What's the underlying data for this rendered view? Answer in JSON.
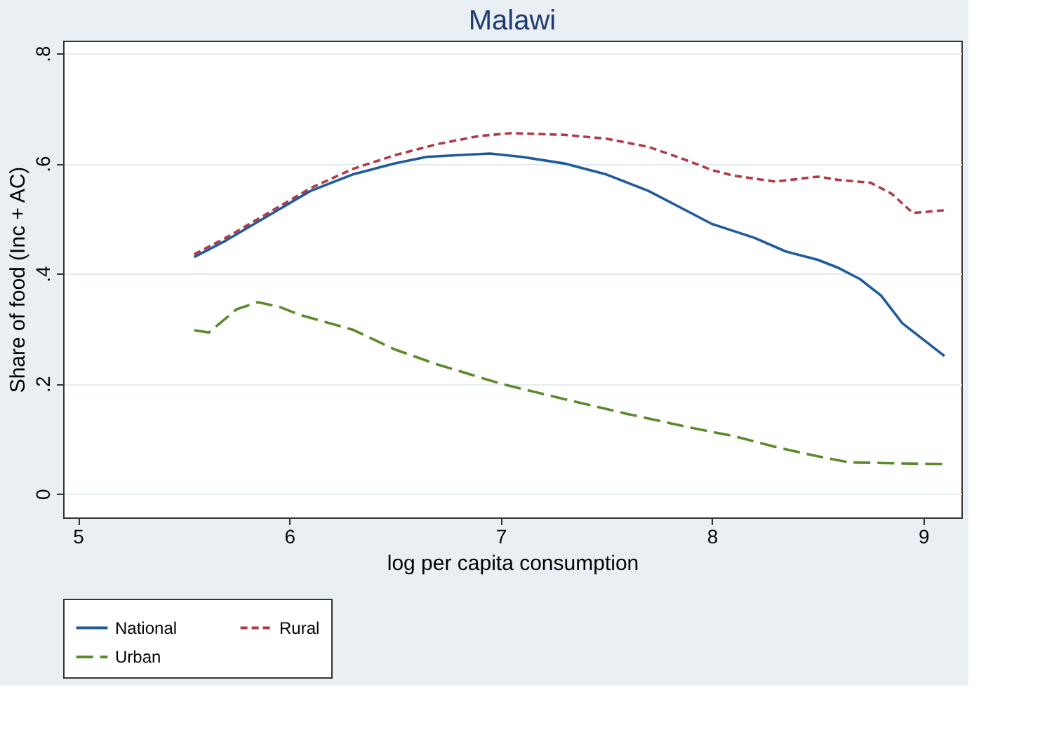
{
  "chart_data": {
    "type": "line",
    "title": "Malawi",
    "xlabel": "log per capita consumption",
    "ylabel": "Share of food (Inc + AC)",
    "xlim": [
      4.93,
      9.18
    ],
    "xticks": [
      5,
      6,
      7,
      8,
      9
    ],
    "ylim": [
      -0.043,
      0.823
    ],
    "yticks": [
      {
        "value": 0,
        "label": "0"
      },
      {
        "value": 0.2,
        "label": ".2"
      },
      {
        "value": 0.4,
        "label": ".4"
      },
      {
        "value": 0.6,
        "label": ".6"
      },
      {
        "value": 0.8,
        "label": ".8"
      }
    ],
    "grid": "y",
    "legend": "bottom",
    "series": [
      {
        "name": "National",
        "color": "#1f5b9c",
        "line_style": "solid",
        "x": [
          5.55,
          5.7,
          5.9,
          6.1,
          6.3,
          6.5,
          6.65,
          6.8,
          6.95,
          7.1,
          7.3,
          7.5,
          7.7,
          7.9,
          8.0,
          8.2,
          8.35,
          8.5,
          8.6,
          8.7,
          8.8,
          8.9,
          9.0,
          9.1
        ],
        "values": [
          0.43,
          0.46,
          0.505,
          0.55,
          0.58,
          0.6,
          0.612,
          0.615,
          0.618,
          0.612,
          0.6,
          0.58,
          0.55,
          0.51,
          0.49,
          0.465,
          0.44,
          0.425,
          0.41,
          0.39,
          0.36,
          0.31,
          0.28,
          0.25
        ]
      },
      {
        "name": "Rural",
        "color": "#b03a48",
        "line_style": "dashed",
        "x": [
          5.55,
          5.7,
          5.9,
          6.1,
          6.3,
          6.5,
          6.7,
          6.9,
          7.05,
          7.3,
          7.5,
          7.7,
          7.85,
          8.0,
          8.1,
          8.3,
          8.5,
          8.6,
          8.75,
          8.85,
          8.95,
          9.1
        ],
        "values": [
          0.435,
          0.465,
          0.51,
          0.555,
          0.59,
          0.615,
          0.635,
          0.65,
          0.655,
          0.652,
          0.645,
          0.63,
          0.61,
          0.588,
          0.578,
          0.567,
          0.576,
          0.57,
          0.565,
          0.545,
          0.51,
          0.515
        ]
      },
      {
        "name": "Urban",
        "color": "#5a8a2a",
        "line_style": "longdash",
        "x": [
          5.55,
          5.62,
          5.75,
          5.85,
          5.95,
          6.05,
          6.3,
          6.5,
          6.7,
          7.0,
          7.3,
          7.6,
          7.9,
          8.1,
          8.3,
          8.5,
          8.65,
          8.9,
          9.1
        ],
        "values": [
          0.297,
          0.293,
          0.335,
          0.348,
          0.34,
          0.325,
          0.298,
          0.262,
          0.235,
          0.2,
          0.172,
          0.145,
          0.12,
          0.105,
          0.085,
          0.068,
          0.057,
          0.055,
          0.054
        ]
      }
    ]
  }
}
